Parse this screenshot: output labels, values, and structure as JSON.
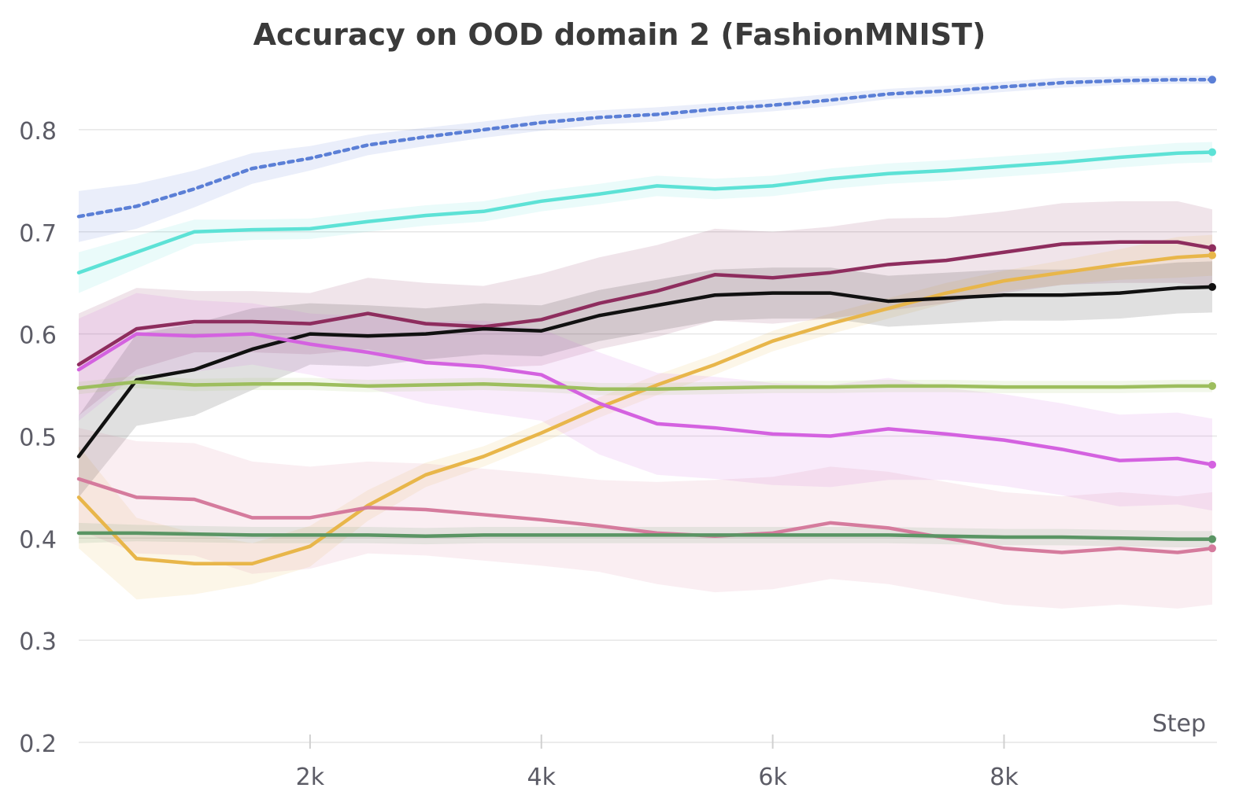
{
  "chart_data": {
    "type": "line",
    "title": "Accuracy on OOD domain 2 (FashionMNIST)",
    "xlabel": "Step",
    "ylabel": "",
    "xlim": [
      0,
      9800
    ],
    "ylim": [
      0.2,
      0.85
    ],
    "x_ticks": [
      {
        "value": 2000,
        "label": "2k"
      },
      {
        "value": 4000,
        "label": "4k"
      },
      {
        "value": 6000,
        "label": "6k"
      },
      {
        "value": 8000,
        "label": "8k"
      }
    ],
    "y_ticks": [
      {
        "value": 0.2,
        "label": "0.2"
      },
      {
        "value": 0.3,
        "label": "0.3"
      },
      {
        "value": 0.4,
        "label": "0.4"
      },
      {
        "value": 0.5,
        "label": "0.5"
      },
      {
        "value": 0.6,
        "label": "0.6"
      },
      {
        "value": 0.7,
        "label": "0.7"
      },
      {
        "value": 0.8,
        "label": "0.8"
      }
    ],
    "grid": "horizontal",
    "legend": "none",
    "x": [
      0,
      500,
      1000,
      1500,
      2000,
      2500,
      3000,
      3500,
      4000,
      4500,
      5000,
      5500,
      6000,
      6500,
      7000,
      7500,
      8000,
      8500,
      9000,
      9500,
      9800
    ],
    "series": [
      {
        "color": "#5b7fd6",
        "dash": "dotted",
        "values": [
          0.715,
          0.725,
          0.742,
          0.762,
          0.772,
          0.785,
          0.793,
          0.8,
          0.807,
          0.812,
          0.815,
          0.82,
          0.824,
          0.829,
          0.835,
          0.838,
          0.842,
          0.846,
          0.848,
          0.849,
          0.849
        ],
        "band": [
          0.025,
          0.022,
          0.018,
          0.015,
          0.012,
          0.01,
          0.009,
          0.008,
          0.008,
          0.007,
          0.007,
          0.006,
          0.006,
          0.006,
          0.005,
          0.005,
          0.005,
          0.005,
          0.004,
          0.004,
          0.004
        ]
      },
      {
        "color": "#5de2d6",
        "dash": "solid",
        "values": [
          0.66,
          0.68,
          0.7,
          0.702,
          0.703,
          0.71,
          0.716,
          0.72,
          0.73,
          0.737,
          0.745,
          0.742,
          0.745,
          0.752,
          0.757,
          0.76,
          0.764,
          0.768,
          0.773,
          0.777,
          0.778
        ],
        "band": [
          0.02,
          0.016,
          0.012,
          0.01,
          0.01,
          0.01,
          0.01,
          0.01,
          0.01,
          0.01,
          0.01,
          0.01,
          0.01,
          0.01,
          0.01,
          0.01,
          0.01,
          0.01,
          0.01,
          0.01,
          0.01
        ]
      },
      {
        "color": "#8e2d5e",
        "dash": "solid",
        "values": [
          0.57,
          0.605,
          0.612,
          0.612,
          0.61,
          0.62,
          0.61,
          0.607,
          0.614,
          0.63,
          0.642,
          0.658,
          0.655,
          0.66,
          0.668,
          0.672,
          0.68,
          0.688,
          0.69,
          0.69,
          0.684
        ],
        "band": [
          0.05,
          0.04,
          0.03,
          0.03,
          0.03,
          0.035,
          0.04,
          0.04,
          0.045,
          0.045,
          0.045,
          0.045,
          0.045,
          0.045,
          0.045,
          0.042,
          0.04,
          0.04,
          0.04,
          0.04,
          0.038
        ]
      },
      {
        "color": "#e8b64a",
        "dash": "solid",
        "values": [
          0.44,
          0.38,
          0.375,
          0.375,
          0.392,
          0.432,
          0.462,
          0.48,
          0.503,
          0.528,
          0.55,
          0.57,
          0.593,
          0.61,
          0.625,
          0.64,
          0.652,
          0.66,
          0.668,
          0.675,
          0.677
        ],
        "band": [
          0.05,
          0.04,
          0.03,
          0.02,
          0.02,
          0.015,
          0.012,
          0.01,
          0.01,
          0.01,
          0.01,
          0.01,
          0.01,
          0.01,
          0.01,
          0.01,
          0.01,
          0.012,
          0.015,
          0.02,
          0.02
        ]
      },
      {
        "color": "#111111",
        "dash": "solid",
        "values": [
          0.48,
          0.555,
          0.565,
          0.585,
          0.6,
          0.598,
          0.6,
          0.605,
          0.603,
          0.618,
          0.628,
          0.638,
          0.64,
          0.64,
          0.632,
          0.635,
          0.638,
          0.638,
          0.64,
          0.645,
          0.646
        ],
        "band": [
          0.04,
          0.045,
          0.045,
          0.04,
          0.03,
          0.03,
          0.025,
          0.025,
          0.025,
          0.025,
          0.025,
          0.025,
          0.025,
          0.025,
          0.025,
          0.025,
          0.025,
          0.025,
          0.025,
          0.025,
          0.025
        ]
      },
      {
        "color": "#d462e0",
        "dash": "solid",
        "values": [
          0.565,
          0.6,
          0.598,
          0.6,
          0.59,
          0.582,
          0.572,
          0.568,
          0.56,
          0.532,
          0.512,
          0.508,
          0.502,
          0.5,
          0.507,
          0.502,
          0.496,
          0.487,
          0.476,
          0.478,
          0.472
        ],
        "band": [
          0.05,
          0.04,
          0.035,
          0.03,
          0.03,
          0.035,
          0.04,
          0.045,
          0.045,
          0.05,
          0.05,
          0.05,
          0.05,
          0.05,
          0.05,
          0.045,
          0.045,
          0.045,
          0.045,
          0.045,
          0.045
        ]
      },
      {
        "color": "#9dbe5e",
        "dash": "solid",
        "values": [
          0.547,
          0.553,
          0.55,
          0.551,
          0.551,
          0.549,
          0.55,
          0.551,
          0.549,
          0.546,
          0.546,
          0.547,
          0.548,
          0.548,
          0.549,
          0.549,
          0.548,
          0.548,
          0.548,
          0.549,
          0.549
        ],
        "band": [
          0.006,
          0.006,
          0.006,
          0.006,
          0.006,
          0.006,
          0.006,
          0.006,
          0.006,
          0.006,
          0.006,
          0.006,
          0.006,
          0.006,
          0.006,
          0.006,
          0.006,
          0.006,
          0.006,
          0.006,
          0.006
        ]
      },
      {
        "color": "#d57b9d",
        "dash": "solid",
        "values": [
          0.458,
          0.44,
          0.438,
          0.42,
          0.42,
          0.43,
          0.428,
          0.423,
          0.418,
          0.412,
          0.405,
          0.402,
          0.405,
          0.415,
          0.41,
          0.4,
          0.39,
          0.386,
          0.39,
          0.386,
          0.39
        ],
        "band": [
          0.05,
          0.055,
          0.055,
          0.055,
          0.05,
          0.045,
          0.045,
          0.045,
          0.045,
          0.045,
          0.05,
          0.055,
          0.055,
          0.055,
          0.055,
          0.055,
          0.055,
          0.055,
          0.055,
          0.055,
          0.055
        ]
      },
      {
        "color": "#5a9564",
        "dash": "solid",
        "values": [
          0.405,
          0.405,
          0.404,
          0.403,
          0.403,
          0.403,
          0.402,
          0.403,
          0.403,
          0.403,
          0.403,
          0.403,
          0.403,
          0.403,
          0.403,
          0.402,
          0.401,
          0.401,
          0.4,
          0.399,
          0.399
        ],
        "band": [
          0.01,
          0.008,
          0.008,
          0.008,
          0.008,
          0.008,
          0.008,
          0.008,
          0.008,
          0.008,
          0.008,
          0.008,
          0.008,
          0.008,
          0.008,
          0.008,
          0.008,
          0.008,
          0.008,
          0.008,
          0.008
        ]
      }
    ]
  }
}
